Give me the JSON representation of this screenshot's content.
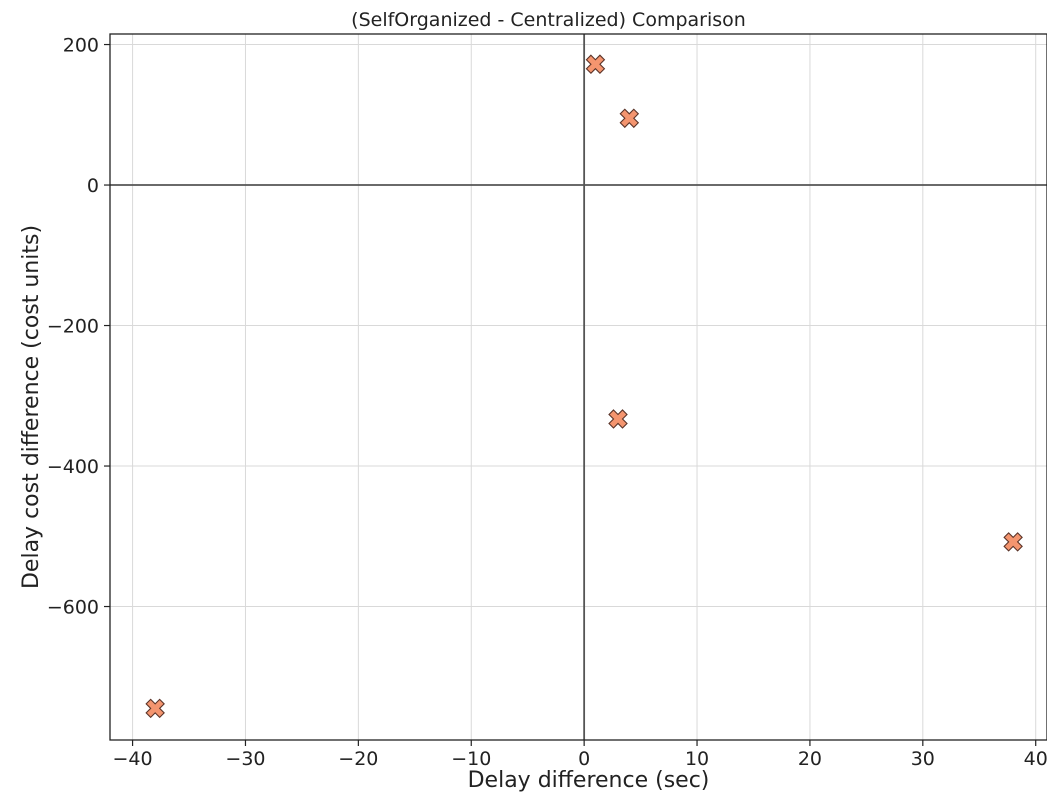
{
  "chart_data": {
    "type": "scatter",
    "title": "(SelfOrganized - Centralized) Comparison",
    "xlabel": "Delay difference (sec)",
    "ylabel": "Delay cost difference (cost units)",
    "xlim": [
      -42,
      41
    ],
    "ylim": [
      -790,
      215
    ],
    "xticks": [
      -40,
      -30,
      -20,
      -10,
      0,
      10,
      20,
      30,
      40
    ],
    "xtick_labels": [
      "−40",
      "−30",
      "−20",
      "−10",
      "0",
      "10",
      "20",
      "30",
      "40"
    ],
    "yticks": [
      200,
      0,
      -200,
      -400,
      -600
    ],
    "ytick_labels": [
      "200",
      "0",
      "−200",
      "−400",
      "−600"
    ],
    "grid": true,
    "reference_lines": {
      "x": 0,
      "y": 0
    },
    "marker": "x-filled",
    "marker_color": "#F4956F",
    "marker_edge_color": "#5a3328",
    "points": [
      {
        "x": 1,
        "y": 172
      },
      {
        "x": 4,
        "y": 95
      },
      {
        "x": 3,
        "y": -333
      },
      {
        "x": 38,
        "y": -508
      },
      {
        "x": -38,
        "y": -745
      }
    ]
  }
}
